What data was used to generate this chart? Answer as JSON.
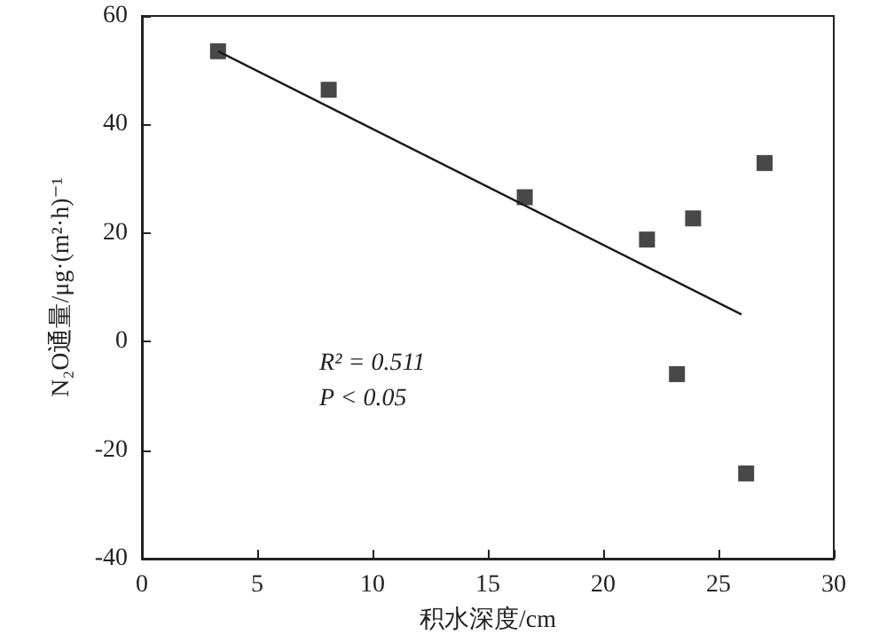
{
  "chart_data": {
    "type": "scatter",
    "xlabel": "积水深度/cm",
    "ylabel": "N₂O通量/μg·(m²·h)⁻¹",
    "annotations": [
      "R² = 0.511",
      "P < 0.05"
    ],
    "xlim": [
      0,
      30
    ],
    "xticks": [
      0,
      5,
      10,
      15,
      20,
      25,
      30
    ],
    "ylim": [
      -40,
      60
    ],
    "yticks": [
      -40,
      -20,
      0,
      20,
      40,
      60
    ],
    "grid": false,
    "marker": "square",
    "series": [
      {
        "color": "#1a1a1a",
        "x": [
          3.3,
          8.1,
          16.6,
          21.9,
          23.9,
          27.0,
          23.2,
          26.2
        ],
        "values": [
          53.5,
          46.4,
          26.6,
          18.8,
          22.7,
          32.9,
          -6,
          -24.3
        ]
      },
      {
        "type": "line",
        "color": "#1a1a1a",
        "marker": "none",
        "line_style": "solid",
        "x": [
          3.3,
          26
        ],
        "values": [
          53.5,
          5
        ]
      }
    ]
  }
}
